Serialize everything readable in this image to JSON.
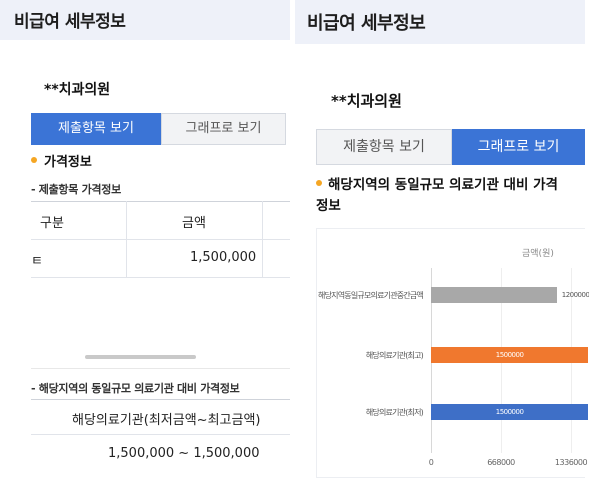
{
  "header": {
    "title": "비급여 세부정보"
  },
  "clinic_name": "**치과의원",
  "tabs": {
    "submit_view": "제출항목 보기",
    "graph_view": "그래프로 보기"
  },
  "left": {
    "section_title": "가격정보",
    "submitted_price_title": "- 제출항목 가격정보",
    "table": {
      "headers": [
        "구분",
        "금액"
      ],
      "row": {
        "category": "ㅌ",
        "amount": "1,500,000"
      }
    },
    "regional_title": "- 해당지역의 동일규모 의료기관 대비 가격정보",
    "regional_header": "해당의료기관(최저금액~최고금액)",
    "regional_value": "1,500,000 ~ 1,500,000"
  },
  "right": {
    "section_title": "해당지역의 동일규모 의료기관 대비 가격",
    "section_title_2": "정보"
  },
  "chart_data": {
    "type": "bar",
    "orientation": "horizontal",
    "unit_label": "금액(원)",
    "categories": [
      "해당지역동일규모의료기관중간금액",
      "해당의료기관(최고)",
      "해당의료기관(최저)"
    ],
    "values": [
      1200000,
      1500000,
      1500000
    ],
    "value_labels": [
      "1200000",
      "1500000",
      "1500000"
    ],
    "colors": [
      "#a8a8a8",
      "#f0782e",
      "#3e6fc7"
    ],
    "xlim": [
      0,
      1336000
    ],
    "xticks": [
      0,
      668000,
      1336000
    ],
    "xtick_labels": [
      "0",
      "668000",
      "1336000"
    ]
  }
}
